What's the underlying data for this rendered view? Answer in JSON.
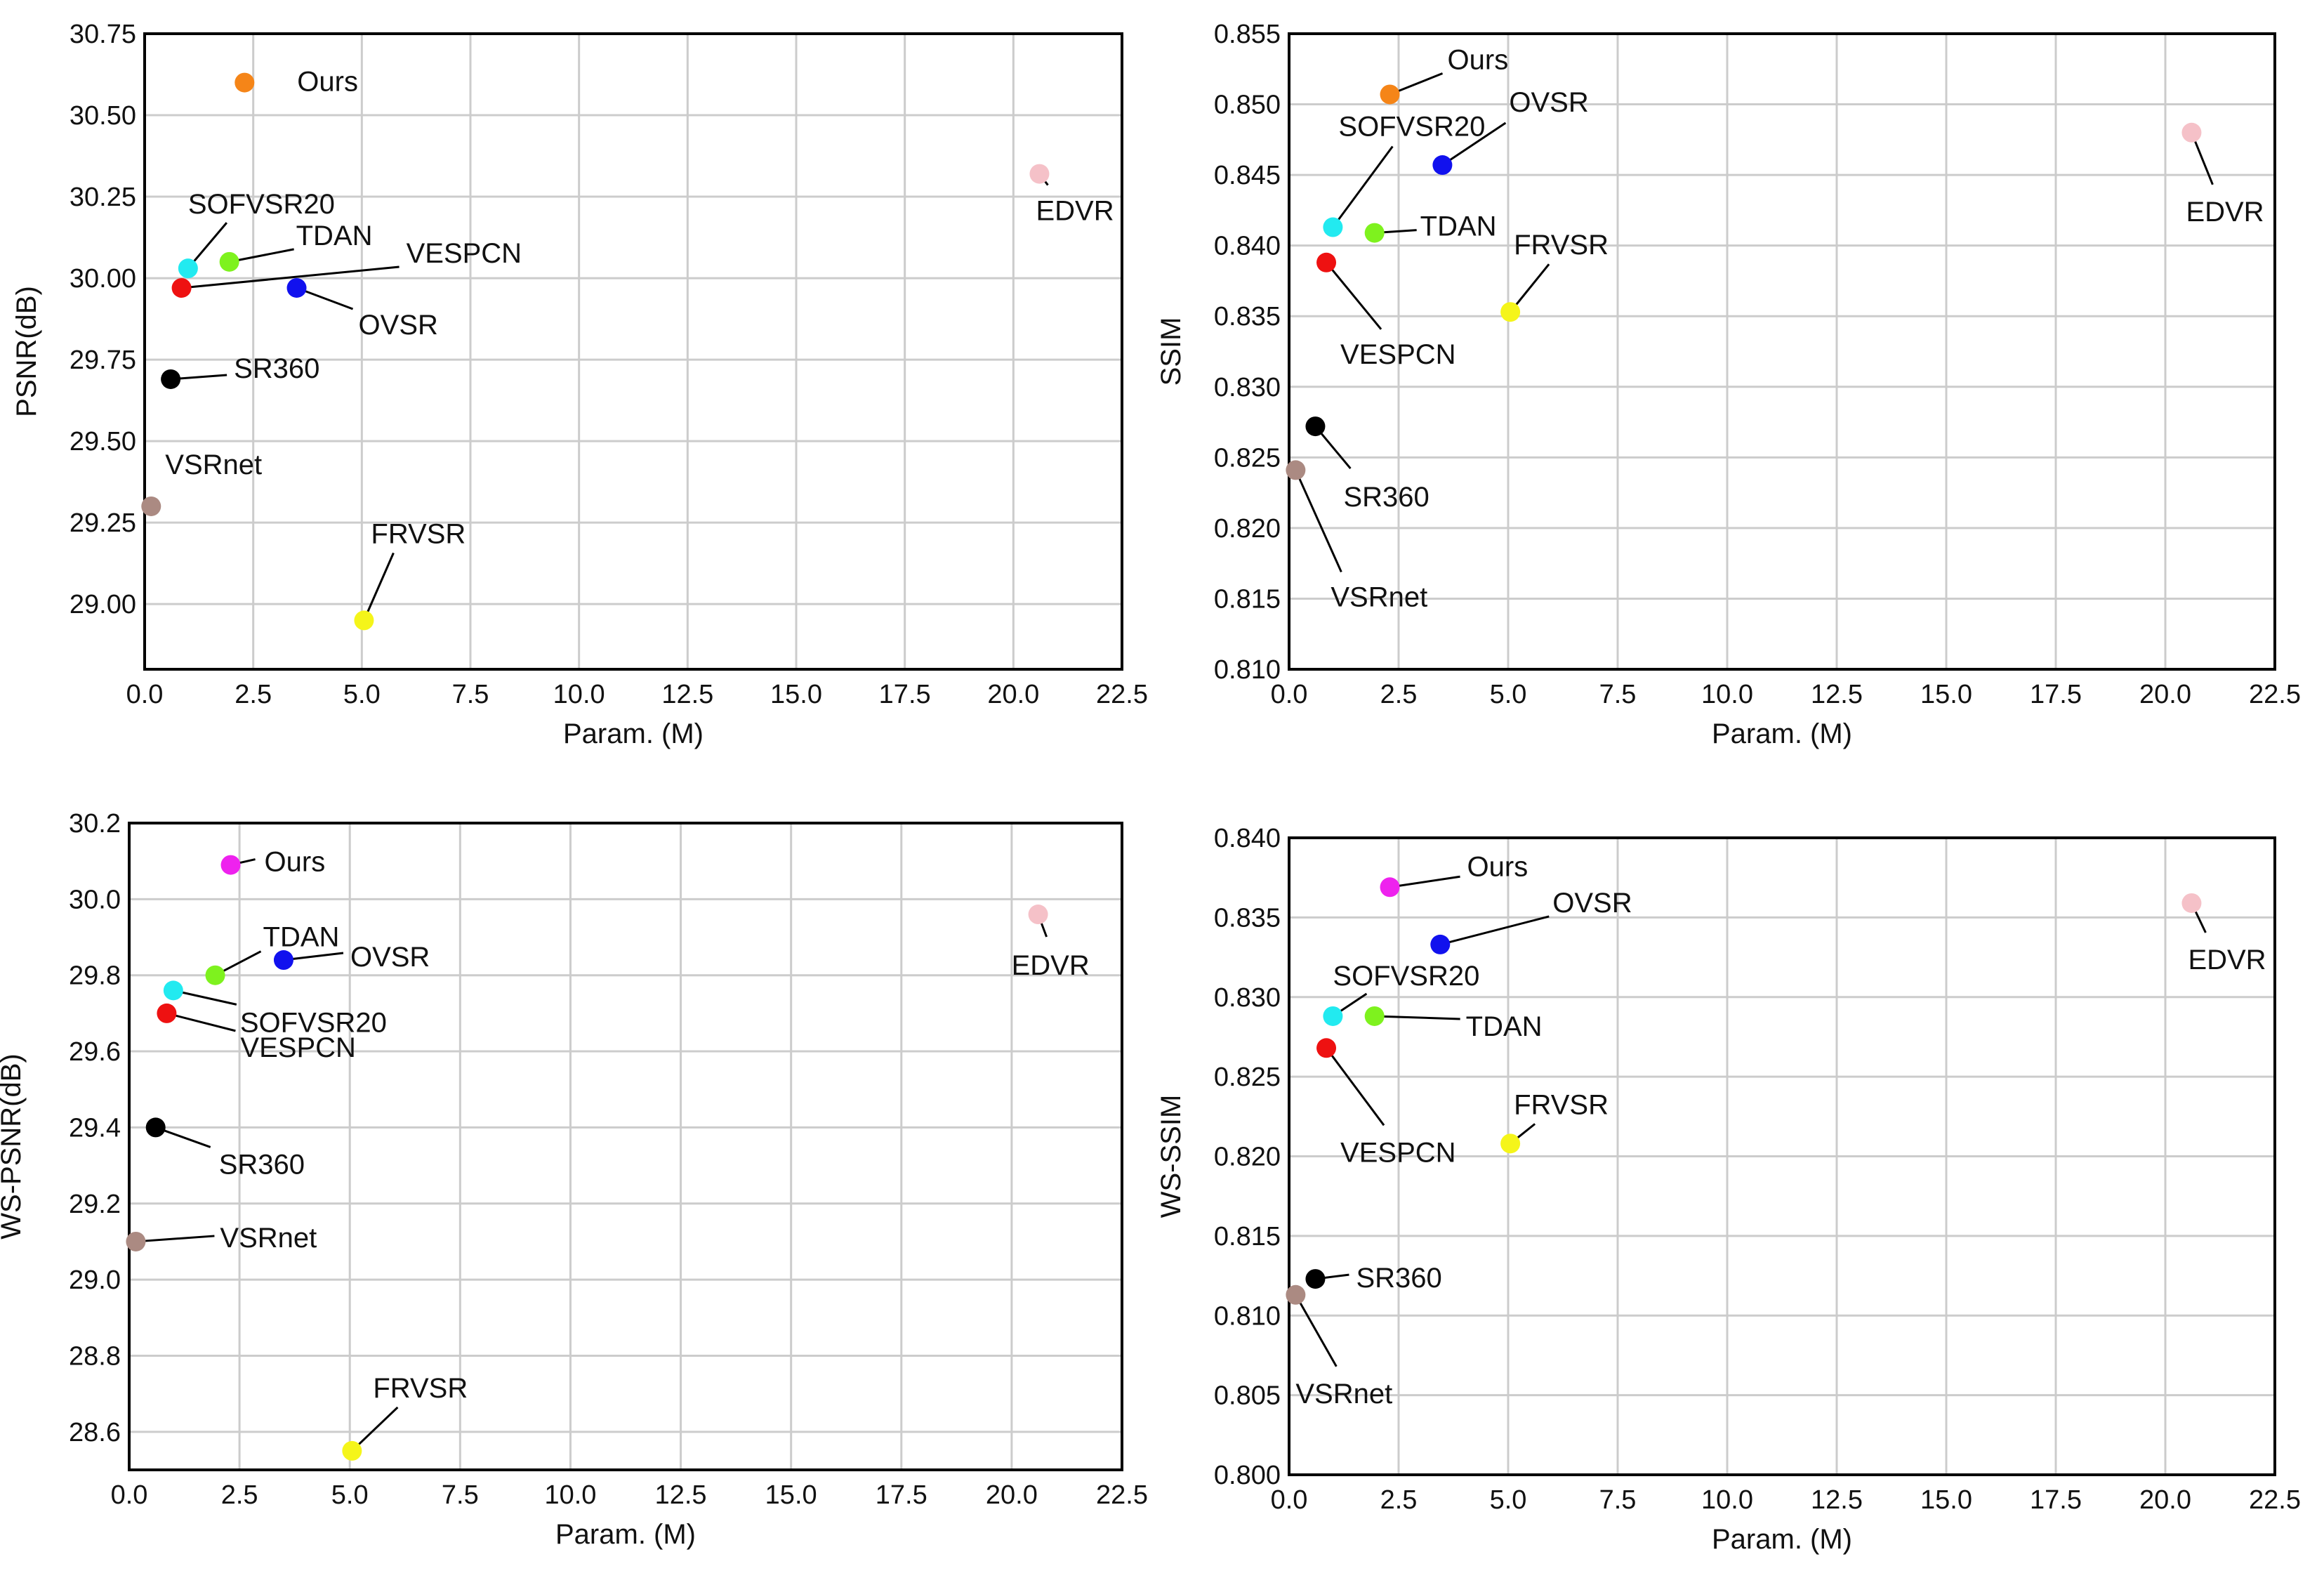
{
  "chart_data": [
    {
      "type": "scatter",
      "id": "psnr",
      "xlabel": "Param. (M)",
      "ylabel": "PSNR(dB)",
      "xlim": [
        0,
        22.5
      ],
      "ylim": [
        28.8,
        30.75
      ],
      "xticks": [
        0,
        2.5,
        5,
        7.5,
        10,
        12.5,
        15,
        17.5,
        20,
        22.5
      ],
      "xtick_labels": [
        "0.0",
        "2.5",
        "5.0",
        "7.5",
        "10.0",
        "12.5",
        "15.0",
        "17.5",
        "20.0",
        "22.5"
      ],
      "yticks": [
        29.0,
        29.25,
        29.5,
        29.75,
        30.0,
        30.25,
        30.5,
        30.75
      ],
      "ytick_labels": [
        "29.00",
        "29.25",
        "29.50",
        "29.75",
        "30.00",
        "30.25",
        "30.50",
        "30.75"
      ],
      "grid": true,
      "points": [
        {
          "name": "Ours",
          "x": 2.3,
          "y": 30.6,
          "color": "#f58518"
        },
        {
          "name": "SOFVSR20",
          "x": 1.0,
          "y": 30.03,
          "color": "#22eaf0"
        },
        {
          "name": "TDAN",
          "x": 1.95,
          "y": 30.05,
          "color": "#7ef21e"
        },
        {
          "name": "VESPCN",
          "x": 0.85,
          "y": 29.97,
          "color": "#ee1111"
        },
        {
          "name": "OVSR",
          "x": 3.5,
          "y": 29.97,
          "color": "#1111ee"
        },
        {
          "name": "SR360",
          "x": 0.6,
          "y": 29.69,
          "color": "#000000"
        },
        {
          "name": "VSRnet",
          "x": 0.15,
          "y": 29.3,
          "color": "#ab8a82"
        },
        {
          "name": "FRVSR",
          "x": 5.05,
          "y": 28.95,
          "color": "#f5f51a"
        },
        {
          "name": "EDVR",
          "x": 20.6,
          "y": 30.32,
          "color": "#f5c1c8"
        }
      ]
    },
    {
      "type": "scatter",
      "id": "ssim",
      "xlabel": "Param. (M)",
      "ylabel": "SSIM",
      "xlim": [
        0,
        22.5
      ],
      "ylim": [
        0.81,
        0.855
      ],
      "xticks": [
        0,
        2.5,
        5,
        7.5,
        10,
        12.5,
        15,
        17.5,
        20,
        22.5
      ],
      "xtick_labels": [
        "0.0",
        "2.5",
        "5.0",
        "7.5",
        "10.0",
        "12.5",
        "15.0",
        "17.5",
        "20.0",
        "22.5"
      ],
      "yticks": [
        0.81,
        0.815,
        0.82,
        0.825,
        0.83,
        0.835,
        0.84,
        0.845,
        0.85,
        0.855
      ],
      "ytick_labels": [
        "0.810",
        "0.815",
        "0.820",
        "0.825",
        "0.830",
        "0.835",
        "0.840",
        "0.845",
        "0.850",
        "0.855"
      ],
      "grid": true,
      "points": [
        {
          "name": "Ours",
          "x": 2.3,
          "y": 0.8507,
          "color": "#f58518"
        },
        {
          "name": "OVSR",
          "x": 3.5,
          "y": 0.8457,
          "color": "#1111ee"
        },
        {
          "name": "SOFVSR20",
          "x": 1.0,
          "y": 0.8413,
          "color": "#22eaf0"
        },
        {
          "name": "TDAN",
          "x": 1.95,
          "y": 0.8409,
          "color": "#7ef21e"
        },
        {
          "name": "VESPCN",
          "x": 0.85,
          "y": 0.8388,
          "color": "#ee1111"
        },
        {
          "name": "FRVSR",
          "x": 5.05,
          "y": 0.8353,
          "color": "#f5f51a"
        },
        {
          "name": "SR360",
          "x": 0.6,
          "y": 0.8272,
          "color": "#000000"
        },
        {
          "name": "VSRnet",
          "x": 0.15,
          "y": 0.8241,
          "color": "#ab8a82"
        },
        {
          "name": "EDVR",
          "x": 20.6,
          "y": 0.848,
          "color": "#f5c1c8"
        }
      ]
    },
    {
      "type": "scatter",
      "id": "ws-psnr",
      "xlabel": "Param. (M)",
      "ylabel": "WS-PSNR(dB)",
      "xlim": [
        0,
        22.5
      ],
      "ylim": [
        28.5,
        30.2
      ],
      "xticks": [
        0,
        2.5,
        5,
        7.5,
        10,
        12.5,
        15,
        17.5,
        20,
        22.5
      ],
      "xtick_labels": [
        "0.0",
        "2.5",
        "5.0",
        "7.5",
        "10.0",
        "12.5",
        "15.0",
        "17.5",
        "20.0",
        "22.5"
      ],
      "yticks": [
        28.6,
        28.8,
        29.0,
        29.2,
        29.4,
        29.6,
        29.8,
        30.0,
        30.2
      ],
      "ytick_labels": [
        "28.6",
        "28.8",
        "29.0",
        "29.2",
        "29.4",
        "29.6",
        "29.8",
        "30.0",
        "30.2"
      ],
      "grid": true,
      "points": [
        {
          "name": "Ours",
          "x": 2.3,
          "y": 30.09,
          "color": "#ee22ee"
        },
        {
          "name": "TDAN",
          "x": 1.95,
          "y": 29.8,
          "color": "#7ef21e"
        },
        {
          "name": "OVSR",
          "x": 3.5,
          "y": 29.84,
          "color": "#1111ee"
        },
        {
          "name": "SOFVSR20",
          "x": 1.0,
          "y": 29.76,
          "color": "#22eaf0"
        },
        {
          "name": "VESPCN",
          "x": 0.85,
          "y": 29.7,
          "color": "#ee1111"
        },
        {
          "name": "SR360",
          "x": 0.6,
          "y": 29.4,
          "color": "#000000"
        },
        {
          "name": "VSRnet",
          "x": 0.15,
          "y": 29.1,
          "color": "#ab8a82"
        },
        {
          "name": "FRVSR",
          "x": 5.05,
          "y": 28.55,
          "color": "#f5f51a"
        },
        {
          "name": "EDVR",
          "x": 20.6,
          "y": 29.96,
          "color": "#f5c1c8"
        }
      ]
    },
    {
      "type": "scatter",
      "id": "ws-ssim",
      "xlabel": "Param. (M)",
      "ylabel": "WS-SSIM",
      "xlim": [
        0,
        22.5
      ],
      "ylim": [
        0.8,
        0.84
      ],
      "xticks": [
        0,
        2.5,
        5,
        7.5,
        10,
        12.5,
        15,
        17.5,
        20,
        22.5
      ],
      "xtick_labels": [
        "0.0",
        "2.5",
        "5.0",
        "7.5",
        "10.0",
        "12.5",
        "15.0",
        "17.5",
        "20.0",
        "22.5"
      ],
      "yticks": [
        0.8,
        0.805,
        0.81,
        0.815,
        0.82,
        0.825,
        0.83,
        0.835,
        0.84
      ],
      "ytick_labels": [
        "0.800",
        "0.805",
        "0.810",
        "0.815",
        "0.820",
        "0.825",
        "0.830",
        "0.835",
        "0.840"
      ],
      "grid": true,
      "points": [
        {
          "name": "Ours",
          "x": 2.3,
          "y": 0.8369,
          "color": "#ee22ee"
        },
        {
          "name": "OVSR",
          "x": 3.45,
          "y": 0.8333,
          "color": "#1111ee"
        },
        {
          "name": "SOFVSR20",
          "x": 1.0,
          "y": 0.8288,
          "color": "#22eaf0"
        },
        {
          "name": "TDAN",
          "x": 1.95,
          "y": 0.8288,
          "color": "#7ef21e"
        },
        {
          "name": "VESPCN",
          "x": 0.85,
          "y": 0.8268,
          "color": "#ee1111"
        },
        {
          "name": "FRVSR",
          "x": 5.05,
          "y": 0.8208,
          "color": "#f5f51a"
        },
        {
          "name": "SR360",
          "x": 0.6,
          "y": 0.8123,
          "color": "#000000"
        },
        {
          "name": "VSRnet",
          "x": 0.15,
          "y": 0.8113,
          "color": "#ab8a82"
        },
        {
          "name": "EDVR",
          "x": 20.6,
          "y": 0.8359,
          "color": "#f5c1c8"
        }
      ]
    }
  ]
}
